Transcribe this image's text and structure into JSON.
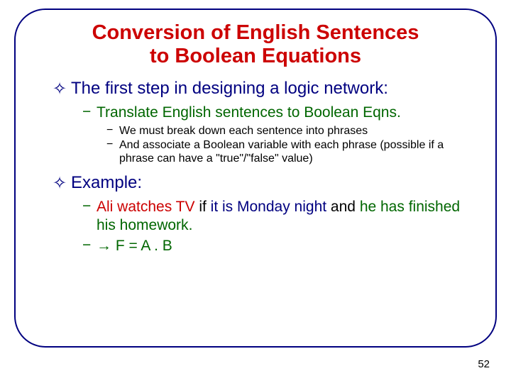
{
  "title_line1": "Conversion of English Sentences",
  "title_line2": "to Boolean Equations",
  "title_color": "#cc0000",
  "title_fontsize": 29,
  "level1_color": "#000080",
  "level1_fontsize": 24,
  "level1_bullet_char": "✧",
  "level2_color": "#006600",
  "level2_fontsize": 21,
  "level2_bullet_char": "−",
  "level3_color": "#000000",
  "level3_fontsize": 16,
  "level3_bullet_char": "−",
  "items": {
    "l1a": "The first step in designing a logic network:",
    "l2a": "Translate English sentences to Boolean Eqns.",
    "l3a": "We must break down each sentence into phrases",
    "l3b": "And associate a Boolean variable with each phrase (possible if a phrase can have a \"true\"/\"false\" value)",
    "l1b": "Example:",
    "l2b_part1": "Ali watches TV",
    "l2b_part2": " if ",
    "l2b_part3": "it is Monday night",
    "l2b_part4": " and ",
    "l2b_part5": "he has finished his homework",
    "l2b_part6": ".",
    "l2c": "→    F = A . B"
  },
  "example_colors": {
    "F": "#cc0000",
    "cond": "#000000",
    "A": "#000080",
    "B": "#006600",
    "punct": "#006600"
  },
  "page_number": "52",
  "page_number_fontsize": 15,
  "page_number_color": "#000000",
  "background_color": "#ffffff",
  "frame_border_color": "#000080"
}
